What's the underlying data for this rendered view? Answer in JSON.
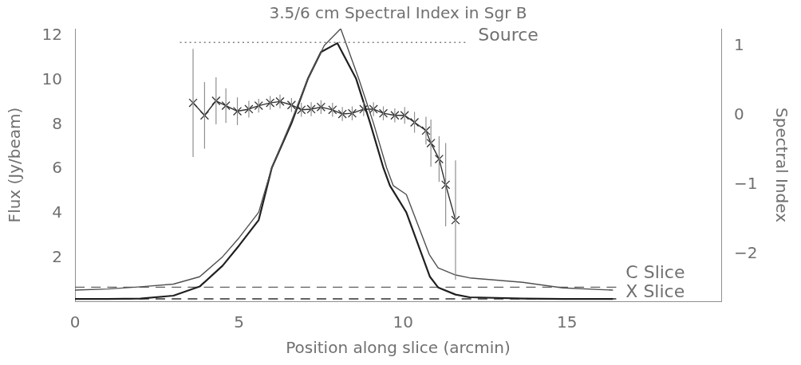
{
  "chart_data": {
    "type": "line",
    "title": "3.5/6 cm Spectral Index in Sgr B",
    "xlabel": "Position along slice (arcmin)",
    "ylabel": "Flux (Jy/beam)",
    "y2label": "Spectral Index",
    "xlim": [
      0,
      19.7
    ],
    "xticks": [
      0,
      5,
      10,
      15
    ],
    "ylim": [
      0,
      12.25
    ],
    "yticks": [
      2,
      4,
      6,
      8,
      10,
      12
    ],
    "y2lim": [
      -2.7,
      1.23
    ],
    "y2ticks": [
      1,
      0,
      {
        "value": -1,
        "label": "−1"
      },
      {
        "value": -2,
        "label": "−2"
      }
    ],
    "grid": false,
    "legend": false,
    "marker": "none",
    "line_style": "solid",
    "series": [
      {
        "name": "C Slice",
        "color": "#505050",
        "x": [
          0,
          1,
          2,
          3,
          3.8,
          4.5,
          5,
          5.6,
          6,
          6.6,
          7.1,
          7.6,
          8.1,
          8.65,
          9.1,
          9.5,
          9.7,
          10.1,
          10.8,
          11.07,
          11.6,
          12.03,
          13.65,
          14.87,
          16.4
        ],
        "values": [
          0.5,
          0.55,
          0.65,
          0.77,
          1.1,
          2.0,
          2.85,
          4.0,
          6,
          8.1,
          10,
          11.5,
          12.25,
          10,
          8,
          6,
          5.2,
          4.8,
          2.1,
          1.5,
          1.18,
          1.05,
          0.85,
          0.6,
          0.5
        ]
      },
      {
        "name": "X Slice",
        "color": "#202020",
        "x": [
          0,
          1,
          2,
          3,
          3.8,
          4.5,
          5,
          5.6,
          6,
          6.6,
          7.1,
          7.5,
          8.0,
          8.57,
          9.0,
          9.4,
          9.6,
          10.1,
          10.82,
          11.07,
          11.6,
          12.03,
          13.65,
          14.87,
          16.4
        ],
        "values": [
          0.1,
          0.1,
          0.12,
          0.25,
          0.66,
          1.6,
          2.5,
          3.65,
          6,
          8,
          10,
          11.2,
          11.6,
          10,
          8,
          6,
          5.2,
          4.0,
          1.1,
          0.62,
          0.3,
          0.18,
          0.12,
          0.1,
          0.1
        ]
      },
      {
        "color": "#606060",
        "line_style": "dashed",
        "x": [
          0,
          16.5
        ],
        "values": [
          0.63,
          0.63
        ]
      },
      {
        "color": "#303030",
        "line_style": "dashed",
        "x": [
          0,
          16.5
        ],
        "values": [
          0.11,
          0.11
        ]
      },
      {
        "name": "Source",
        "color": "#808080",
        "line_style": "dotted",
        "x": [
          3.2,
          11.9
        ],
        "values": [
          11.63,
          11.63
        ]
      },
      {
        "color": "#303030",
        "axis": "y2",
        "marker": "cross",
        "x": [
          3.6,
          3.95,
          4.3,
          4.6,
          4.95,
          5.3,
          5.6,
          5.95,
          6.25,
          6.6,
          6.9,
          7.2,
          7.5,
          7.85,
          8.15,
          8.45,
          8.8,
          9.1,
          9.4,
          9.75,
          10.05,
          10.35,
          10.7,
          10.85,
          11.1,
          11.3,
          11.6
        ],
        "values": [
          0.16,
          -0.02,
          0.19,
          0.12,
          0.04,
          0.07,
          0.12,
          0.16,
          0.18,
          0.13,
          0.06,
          0.07,
          0.1,
          0.06,
          0.0,
          0.01,
          0.07,
          0.07,
          0.01,
          -0.02,
          -0.02,
          -0.12,
          -0.24,
          -0.42,
          -0.65,
          -1.02,
          -1.53
        ],
        "errors": [
          0.78,
          0.48,
          0.34,
          0.25,
          0.2,
          0.12,
          0.1,
          0.1,
          0.1,
          0.1,
          0.1,
          0.1,
          0.1,
          0.1,
          0.1,
          0.1,
          0.1,
          0.1,
          0.1,
          0.1,
          0.12,
          0.15,
          0.2,
          0.34,
          0.33,
          0.6,
          0.86
        ]
      }
    ]
  }
}
